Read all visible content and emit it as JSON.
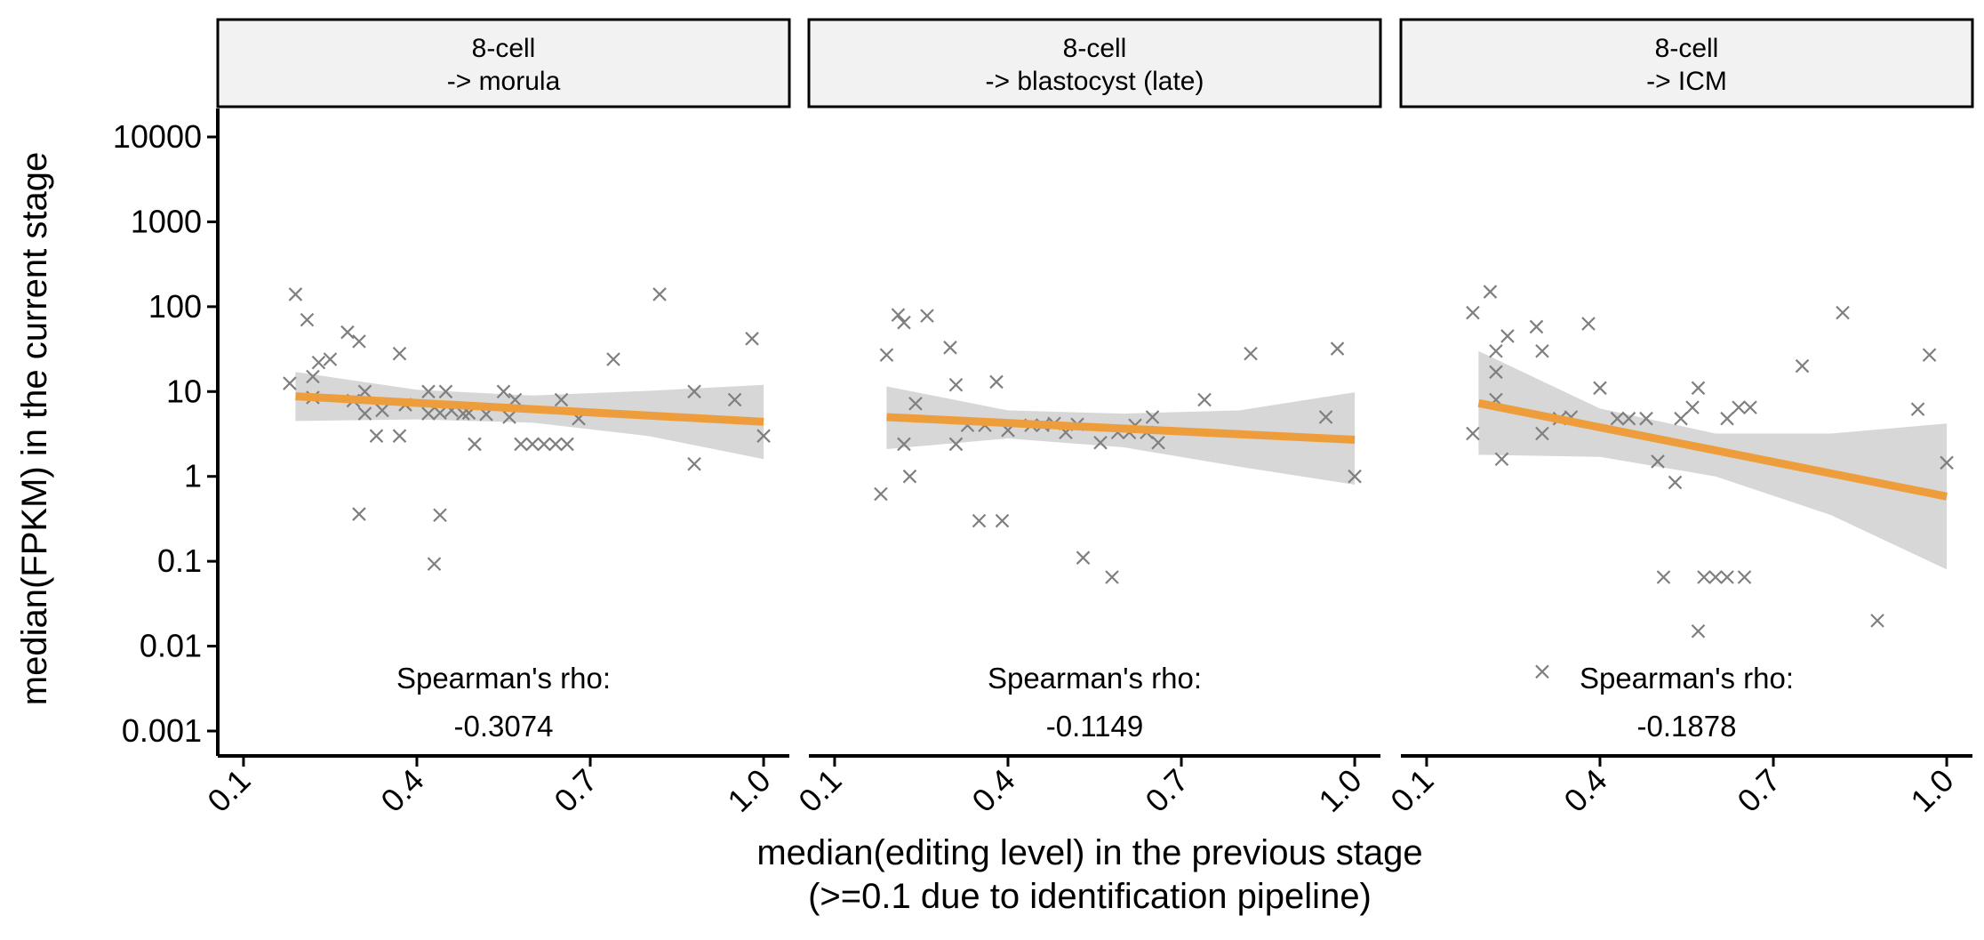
{
  "chart_data": {
    "type": "scatter",
    "ylabel": "median(FPKM) in the current stage",
    "xlabel_line1": "median(editing level) in the previous stage",
    "xlabel_line2": "(>=0.1 due to identification pipeline)",
    "xlim": [
      0.1,
      1.0
    ],
    "x_ticks": [
      "0.1",
      "0.4",
      "0.7",
      "1.0"
    ],
    "y_scale": "log10",
    "ylim": [
      0.001,
      10000
    ],
    "y_ticks": [
      "0.001",
      "0.01",
      "0.1",
      "1",
      "10",
      "100",
      "1000",
      "10000"
    ],
    "marker": "x",
    "point_color": "#7f7f7f",
    "fit_color": "#ee9d3c",
    "band_color": "#d7d7d7",
    "rho_label": "Spearman's rho:",
    "panels": [
      {
        "strip_line1": "8-cell",
        "strip_line2": "-> morula",
        "rho": "-0.3074",
        "fit": {
          "x": [
            0.19,
            1.0
          ],
          "y": [
            8.8,
            4.4
          ]
        },
        "band": {
          "x": [
            0.19,
            0.4,
            0.6,
            0.8,
            1.0
          ],
          "lower": [
            4.5,
            4.7,
            4.3,
            3.0,
            1.6
          ],
          "upper": [
            17,
            10.5,
            9.0,
            10.2,
            12
          ]
        },
        "points": [
          [
            0.18,
            12.5
          ],
          [
            0.19,
            140
          ],
          [
            0.21,
            70
          ],
          [
            0.22,
            15
          ],
          [
            0.22,
            8.5
          ],
          [
            0.23,
            22
          ],
          [
            0.25,
            24
          ],
          [
            0.28,
            50
          ],
          [
            0.29,
            7.8
          ],
          [
            0.3,
            39
          ],
          [
            0.31,
            10
          ],
          [
            0.31,
            5.5
          ],
          [
            0.33,
            3.0
          ],
          [
            0.34,
            6.0
          ],
          [
            0.3,
            0.36
          ],
          [
            0.37,
            28
          ],
          [
            0.37,
            3.0
          ],
          [
            0.38,
            7.0
          ],
          [
            0.42,
            10
          ],
          [
            0.42,
            5.5
          ],
          [
            0.44,
            5.6
          ],
          [
            0.45,
            10
          ],
          [
            0.46,
            6.0
          ],
          [
            0.48,
            5.5
          ],
          [
            0.49,
            5.6
          ],
          [
            0.5,
            2.4
          ],
          [
            0.43,
            0.093
          ],
          [
            0.44,
            0.35
          ],
          [
            0.52,
            5.4
          ],
          [
            0.55,
            10
          ],
          [
            0.56,
            5.0
          ],
          [
            0.57,
            8.0
          ],
          [
            0.58,
            2.4
          ],
          [
            0.6,
            2.4
          ],
          [
            0.62,
            2.4
          ],
          [
            0.64,
            2.4
          ],
          [
            0.65,
            8.0
          ],
          [
            0.66,
            2.4
          ],
          [
            0.68,
            4.8
          ],
          [
            0.74,
            24
          ],
          [
            0.82,
            140
          ],
          [
            0.88,
            10
          ],
          [
            0.88,
            1.4
          ],
          [
            0.95,
            8.0
          ],
          [
            0.98,
            42
          ],
          [
            1.0,
            3.0
          ]
        ]
      },
      {
        "strip_line1": "8-cell",
        "strip_line2": "-> blastocyst (late)",
        "rho": "-0.1149",
        "fit": {
          "x": [
            0.19,
            1.0
          ],
          "y": [
            5.0,
            2.7
          ]
        },
        "band": {
          "x": [
            0.19,
            0.4,
            0.6,
            0.8,
            1.0
          ],
          "lower": [
            2.1,
            2.8,
            2.2,
            1.3,
            0.8
          ],
          "upper": [
            11.5,
            6.0,
            5.5,
            6.0,
            9.8
          ]
        },
        "points": [
          [
            0.18,
            0.62
          ],
          [
            0.19,
            27
          ],
          [
            0.21,
            80
          ],
          [
            0.22,
            65
          ],
          [
            0.22,
            2.4
          ],
          [
            0.23,
            1.0
          ],
          [
            0.24,
            7.2
          ],
          [
            0.26,
            78
          ],
          [
            0.3,
            33
          ],
          [
            0.31,
            12
          ],
          [
            0.31,
            2.4
          ],
          [
            0.33,
            4.0
          ],
          [
            0.35,
            0.3
          ],
          [
            0.36,
            4.0
          ],
          [
            0.38,
            13
          ],
          [
            0.39,
            0.3
          ],
          [
            0.4,
            3.5
          ],
          [
            0.44,
            4.0
          ],
          [
            0.46,
            4.0
          ],
          [
            0.48,
            4.2
          ],
          [
            0.5,
            3.3
          ],
          [
            0.52,
            4.1
          ],
          [
            0.53,
            0.11
          ],
          [
            0.56,
            2.5
          ],
          [
            0.58,
            0.065
          ],
          [
            0.59,
            3.3
          ],
          [
            0.61,
            3.3
          ],
          [
            0.62,
            4.0
          ],
          [
            0.64,
            3.3
          ],
          [
            0.65,
            5.0
          ],
          [
            0.66,
            2.5
          ],
          [
            0.74,
            8.0
          ],
          [
            0.82,
            28
          ],
          [
            0.95,
            5.0
          ],
          [
            0.97,
            32
          ],
          [
            1.0,
            1.0
          ]
        ]
      },
      {
        "strip_line1": "8-cell",
        "strip_line2": "-> ICM",
        "rho": "-0.1878",
        "fit": {
          "x": [
            0.19,
            1.0
          ],
          "y": [
            7.3,
            0.58
          ]
        },
        "band": {
          "x": [
            0.19,
            0.4,
            0.6,
            0.8,
            1.0
          ],
          "lower": [
            1.8,
            1.7,
            1.0,
            0.35,
            0.08
          ],
          "upper": [
            30,
            6.3,
            3.2,
            3.2,
            4.2
          ]
        },
        "points": [
          [
            0.18,
            3.2
          ],
          [
            0.18,
            85
          ],
          [
            0.21,
            150
          ],
          [
            0.22,
            30
          ],
          [
            0.22,
            17
          ],
          [
            0.22,
            8.0
          ],
          [
            0.23,
            1.6
          ],
          [
            0.24,
            45
          ],
          [
            0.29,
            58
          ],
          [
            0.3,
            30
          ],
          [
            0.3,
            3.2
          ],
          [
            0.3,
            0.005
          ],
          [
            0.33,
            4.8
          ],
          [
            0.35,
            5.0
          ],
          [
            0.38,
            63
          ],
          [
            0.4,
            11
          ],
          [
            0.43,
            4.8
          ],
          [
            0.45,
            4.8
          ],
          [
            0.48,
            4.8
          ],
          [
            0.5,
            1.5
          ],
          [
            0.51,
            0.065
          ],
          [
            0.53,
            0.85
          ],
          [
            0.54,
            4.8
          ],
          [
            0.56,
            6.5
          ],
          [
            0.57,
            11
          ],
          [
            0.57,
            0.015
          ],
          [
            0.58,
            0.065
          ],
          [
            0.6,
            0.065
          ],
          [
            0.62,
            0.065
          ],
          [
            0.62,
            4.8
          ],
          [
            0.64,
            6.5
          ],
          [
            0.65,
            0.065
          ],
          [
            0.66,
            6.5
          ],
          [
            0.75,
            20
          ],
          [
            0.82,
            85
          ],
          [
            0.88,
            0.02
          ],
          [
            0.95,
            6.2
          ],
          [
            0.97,
            27
          ],
          [
            1.0,
            1.45
          ]
        ]
      }
    ]
  }
}
